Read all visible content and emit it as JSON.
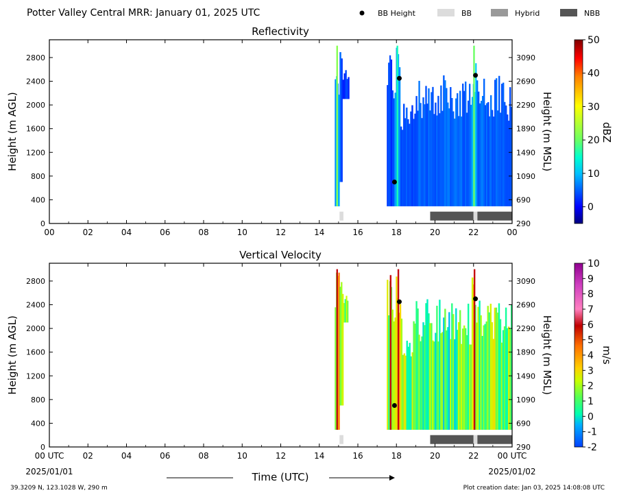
{
  "header": {
    "title": "Potter Valley Central MRR:  January 01, 2025 UTC"
  },
  "legend": {
    "items": [
      {
        "label": "BB Height",
        "kind": "marker",
        "color": "#000000"
      },
      {
        "label": "BB",
        "kind": "swatch",
        "color": "#dcdcdc"
      },
      {
        "label": "Hybrid",
        "kind": "swatch",
        "color": "#999999"
      },
      {
        "label": "NBB",
        "kind": "swatch",
        "color": "#555555"
      }
    ]
  },
  "footer": {
    "location": "39.3209 N, 123.1028 W, 290 m",
    "creation": "Plot creation date: Jan 03, 2025 14:08:08 UTC",
    "start_date": "2025/01/01",
    "end_date": "2025/01/02",
    "x_axis_label": "Time (UTC)"
  },
  "chart_data": [
    {
      "type": "heatmap",
      "title": "Reflectivity",
      "ylabel": "Height (m AGL)",
      "ylabel_right": "Height (m MSL)",
      "ylim": [
        0,
        3100
      ],
      "yticks": [
        0,
        400,
        800,
        1200,
        1600,
        2000,
        2400,
        2800
      ],
      "yticks_right": [
        "290",
        "690",
        "1090",
        "1490",
        "1890",
        "2290",
        "2690",
        "3090"
      ],
      "xlim": [
        0,
        24
      ],
      "xticks": [
        "00",
        "02",
        "04",
        "06",
        "08",
        "10",
        "12",
        "14",
        "16",
        "18",
        "20",
        "22",
        "00"
      ],
      "colorbar": {
        "label": "dBZ",
        "min": -5,
        "max": 50,
        "ticks": [
          "0",
          "10",
          "20",
          "30",
          "40",
          "50"
        ],
        "tick_values": [
          0,
          10,
          20,
          30,
          40,
          50
        ]
      },
      "bb_height_points": [
        {
          "time_h": 17.9,
          "height_m": 700
        },
        {
          "time_h": 18.15,
          "height_m": 2450
        },
        {
          "time_h": 22.1,
          "height_m": 2500
        }
      ],
      "echo_segments": [
        {
          "start_h": 14.8,
          "end_h": 15.05,
          "bottom_m": 290,
          "top_m": 3000,
          "level": 8,
          "spike": 22
        },
        {
          "start_h": 15.05,
          "end_h": 15.2,
          "bottom_m": 700,
          "top_m": 2950,
          "level": 4
        },
        {
          "start_h": 15.2,
          "end_h": 15.55,
          "bottom_m": 2100,
          "top_m": 2600,
          "level": 3
        },
        {
          "start_h": 17.5,
          "end_h": 17.9,
          "bottom_m": 290,
          "top_m": 2900,
          "level": 3
        },
        {
          "start_h": 17.9,
          "end_h": 18.2,
          "bottom_m": 290,
          "top_m": 3000,
          "level": 8,
          "spike": 16
        },
        {
          "start_h": 18.2,
          "end_h": 19.0,
          "bottom_m": 290,
          "top_m": 2150,
          "level": 4
        },
        {
          "start_h": 19.0,
          "end_h": 21.9,
          "bottom_m": 290,
          "top_m": 2500,
          "level": 5
        },
        {
          "start_h": 21.9,
          "end_h": 22.15,
          "bottom_m": 290,
          "top_m": 3000,
          "level": 10,
          "spike": 20
        },
        {
          "start_h": 22.15,
          "end_h": 24.0,
          "bottom_m": 290,
          "top_m": 2500,
          "level": 5
        }
      ],
      "bb_type_bar": [
        {
          "start_h": 15.05,
          "end_h": 15.25,
          "type": "BB"
        },
        {
          "start_h": 19.75,
          "end_h": 22.0,
          "type": "NBB"
        },
        {
          "start_h": 22.0,
          "end_h": 22.2,
          "type": "BB"
        },
        {
          "start_h": 22.2,
          "end_h": 24.0,
          "type": "NBB"
        }
      ]
    },
    {
      "type": "heatmap",
      "title": "Vertical Velocity",
      "ylabel": "Height (m AGL)",
      "ylabel_right": "Height (m MSL)",
      "ylim": [
        0,
        3100
      ],
      "yticks": [
        0,
        400,
        800,
        1200,
        1600,
        2000,
        2400,
        2800
      ],
      "yticks_right": [
        "290",
        "690",
        "1090",
        "1490",
        "1890",
        "2290",
        "2690",
        "3090"
      ],
      "xlim": [
        0,
        24
      ],
      "xticks": [
        "00 UTC",
        "02",
        "04",
        "06",
        "08",
        "10",
        "12",
        "14",
        "16",
        "18",
        "20",
        "22",
        "00 UTC"
      ],
      "colorbar": {
        "label": "m/s",
        "min": -2,
        "max": 10,
        "ticks": [
          "-2",
          "-1",
          "0",
          "1",
          "2",
          "3",
          "4",
          "5",
          "6",
          "7",
          "8",
          "9",
          "10"
        ],
        "tick_values": [
          -2,
          -1,
          0,
          1,
          2,
          3,
          4,
          5,
          6,
          7,
          8,
          9,
          10
        ]
      },
      "bb_height_points": [
        {
          "time_h": 17.9,
          "height_m": 700
        },
        {
          "time_h": 18.15,
          "height_m": 2450
        },
        {
          "time_h": 22.1,
          "height_m": 2500
        }
      ],
      "echo_segments": [
        {
          "start_h": 14.8,
          "end_h": 15.05,
          "bottom_m": 290,
          "top_m": 3000,
          "level": 3,
          "spike": 6
        },
        {
          "start_h": 15.05,
          "end_h": 15.25,
          "bottom_m": 700,
          "top_m": 2950,
          "level": 2.5
        },
        {
          "start_h": 15.25,
          "end_h": 15.5,
          "bottom_m": 2100,
          "top_m": 2600,
          "level": 1.5
        },
        {
          "start_h": 17.5,
          "end_h": 17.9,
          "bottom_m": 290,
          "top_m": 2900,
          "level": 2,
          "spike": 6
        },
        {
          "start_h": 17.9,
          "end_h": 18.3,
          "bottom_m": 290,
          "top_m": 3000,
          "level": 2.5,
          "spike": 6
        },
        {
          "start_h": 18.3,
          "end_h": 19.0,
          "bottom_m": 290,
          "top_m": 2150,
          "level": 1.5
        },
        {
          "start_h": 19.0,
          "end_h": 21.9,
          "bottom_m": 290,
          "top_m": 2500,
          "level": 1
        },
        {
          "start_h": 21.9,
          "end_h": 22.2,
          "bottom_m": 290,
          "top_m": 3000,
          "level": 2,
          "spike": 6
        },
        {
          "start_h": 22.2,
          "end_h": 24.0,
          "bottom_m": 290,
          "top_m": 2500,
          "level": 1.5
        }
      ],
      "bb_type_bar": [
        {
          "start_h": 15.05,
          "end_h": 15.25,
          "type": "BB"
        },
        {
          "start_h": 19.75,
          "end_h": 22.0,
          "type": "NBB"
        },
        {
          "start_h": 22.0,
          "end_h": 22.2,
          "type": "BB"
        },
        {
          "start_h": 22.2,
          "end_h": 24.0,
          "type": "NBB"
        }
      ]
    }
  ]
}
